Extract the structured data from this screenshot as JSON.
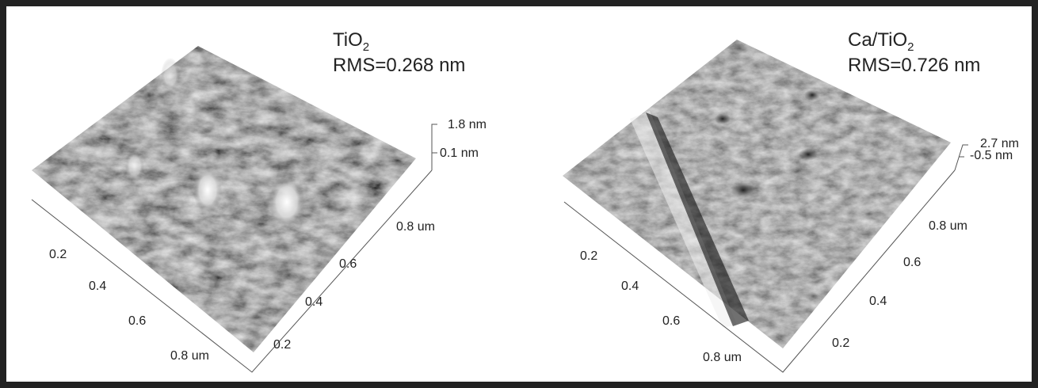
{
  "panels": [
    {
      "title": {
        "base": "TiO",
        "sub": "2"
      },
      "rms": "RMS=0.268 nm",
      "z_labels": [
        "1.8 nm",
        "0.1 nm"
      ],
      "left_axis": [
        "0.2",
        "0.4",
        "0.6",
        "0.8 um"
      ],
      "right_axis": [
        "0.2",
        "0.4",
        "0.6",
        "0.8 um"
      ]
    },
    {
      "title": {
        "base": "Ca/TiO",
        "sub": "2"
      },
      "rms": "RMS=0.726 nm",
      "z_labels": [
        "2.7 nm",
        "-0.5 nm"
      ],
      "left_axis": [
        "0.2",
        "0.4",
        "0.6",
        "0.8 um"
      ],
      "right_axis": [
        "0.2",
        "0.4",
        "0.6",
        "0.8 um"
      ]
    }
  ]
}
